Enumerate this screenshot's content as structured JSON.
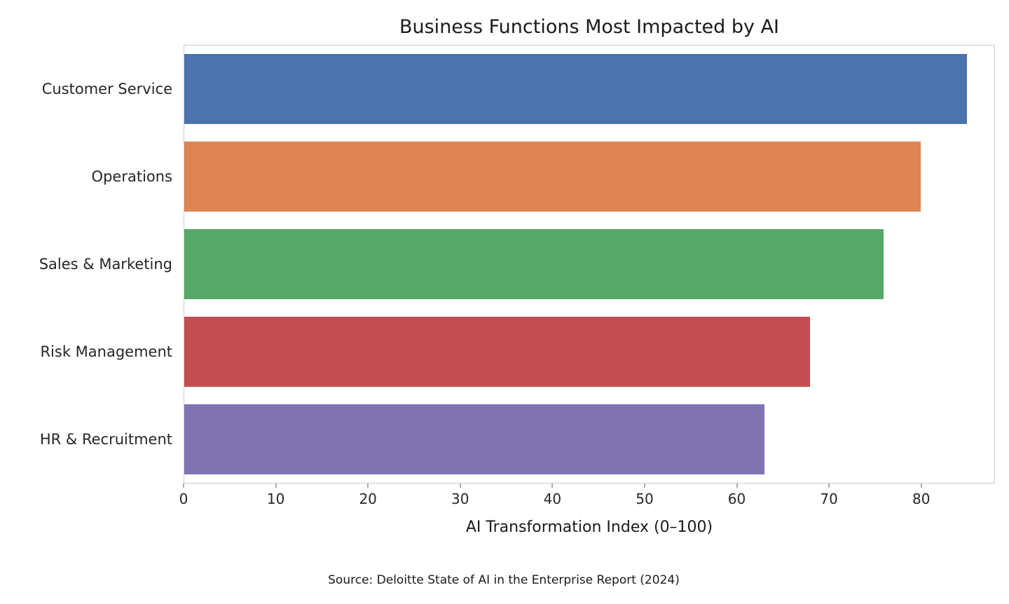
{
  "chart_data": {
    "type": "bar",
    "orientation": "horizontal",
    "title": "Business Functions Most Impacted by AI",
    "categories": [
      "Customer Service",
      "Operations",
      "Sales & Marketing",
      "Risk Management",
      "HR & Recruitment"
    ],
    "values": [
      85,
      80,
      76,
      68,
      63
    ],
    "bar_colors": [
      "#4c72b0",
      "#dd8452",
      "#55a868",
      "#c44e52",
      "#8172b3"
    ],
    "xlabel": "AI Transformation Index (0–100)",
    "ylabel": "",
    "xlim": [
      0,
      88
    ],
    "xticks": [
      0,
      10,
      20,
      30,
      40,
      50,
      60,
      70,
      80
    ],
    "grid": false,
    "legend": "none",
    "source_note": "Source: Deloitte State of AI in the Enterprise Report (2024)"
  }
}
